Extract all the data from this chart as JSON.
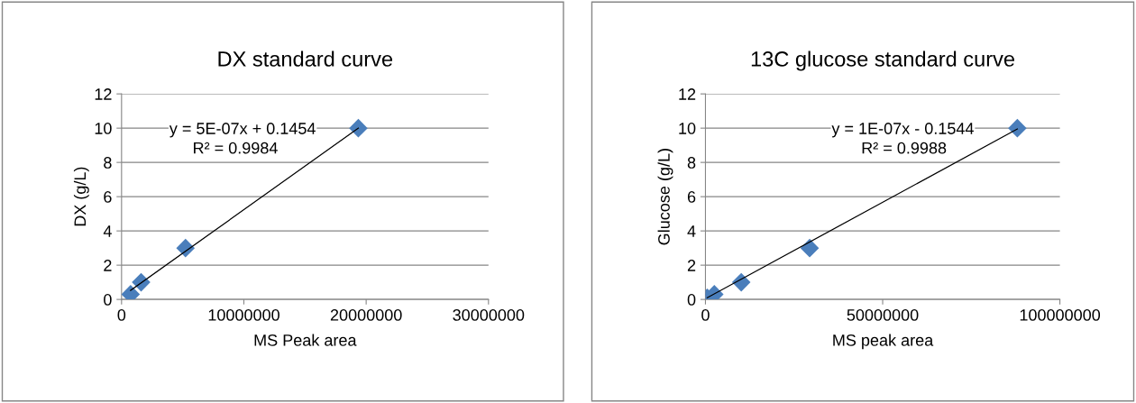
{
  "chart_data": [
    {
      "type": "scatter",
      "title": "DX standard curve",
      "xlabel": "MS Peak area",
      "ylabel": "DX (g/L)",
      "series": [
        {
          "color": "#4a7ebb",
          "x": [
            740000,
            1600000,
            5230000,
            19360000
          ],
          "values": [
            0.3,
            1,
            3,
            10
          ],
          "marker": "diamond"
        },
        {
          "type": "line",
          "color": "#000000",
          "x": [
            740000,
            19360000
          ],
          "values": [
            0.53,
            10.0
          ],
          "marker": "none",
          "line_style": "solid"
        }
      ],
      "annotations": [
        "y = 5E-07x + 0.1454",
        "R² = 0.9984"
      ],
      "xlim": [
        0,
        30000000
      ],
      "xticks": [
        0,
        10000000,
        20000000,
        30000000
      ],
      "ylim": [
        0,
        12
      ],
      "yticks": [
        0,
        2,
        4,
        6,
        8,
        10,
        12
      ],
      "grid": "y",
      "legend": false
    },
    {
      "type": "scatter",
      "title": "13C glucose standard curve",
      "xlabel": "MS peak area",
      "ylabel": "Glucose (g/L)",
      "series": [
        {
          "color": "#4a7ebb",
          "x": [
            500000,
            2500000,
            10100000,
            29400000,
            88000000
          ],
          "values": [
            0.1,
            0.3,
            1,
            3,
            10
          ],
          "marker": "diamond"
        },
        {
          "type": "line",
          "color": "#000000",
          "x": [
            500000,
            88000000
          ],
          "values": [
            0.1,
            9.95
          ],
          "marker": "none",
          "line_style": "solid"
        }
      ],
      "annotations": [
        "y = 1E-07x - 0.1544",
        "R² = 0.9988"
      ],
      "xlim": [
        0,
        100000000
      ],
      "xticks": [
        0,
        50000000,
        100000000
      ],
      "ylim": [
        0,
        12
      ],
      "yticks": [
        0,
        2,
        4,
        6,
        8,
        10,
        12
      ],
      "grid": "y",
      "legend": false
    }
  ]
}
